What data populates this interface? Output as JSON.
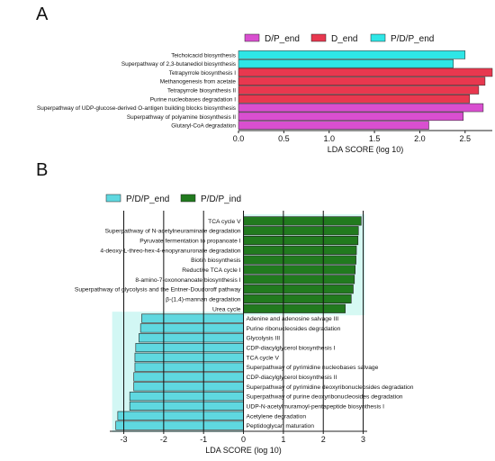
{
  "chart_data": [
    {
      "panel": "A",
      "type": "bar",
      "orientation": "horizontal",
      "xlabel": "LDA SCORE (log 10)",
      "xlim": [
        0,
        2.8
      ],
      "xticks": [
        0.0,
        0.5,
        1.0,
        1.5,
        2.0,
        2.5
      ],
      "xtick_labels": [
        "0.0",
        "0.5",
        "1.0",
        "1.5",
        "2.0",
        "2.5"
      ],
      "grid": false,
      "legend_position": "top",
      "legend": [
        {
          "name": "D/P_end",
          "color": "#d94fd0"
        },
        {
          "name": "D_end",
          "color": "#e8384f"
        },
        {
          "name": "P/D/P_end",
          "color": "#2ee6e6"
        }
      ],
      "bars": [
        {
          "label": "Teichoicacid biosynthesis",
          "value": 2.5,
          "group": "P/D/P_end"
        },
        {
          "label": "Superpathway of 2,3-butanediol biosynthesis",
          "value": 2.37,
          "group": "P/D/P_end"
        },
        {
          "label": "Tetrapyrrole biosynthesis I",
          "value": 2.8,
          "group": "D_end"
        },
        {
          "label": "Methanogenesis from acetate",
          "value": 2.72,
          "group": "D_end"
        },
        {
          "label": "Tetrapyrrole biosynthesis II",
          "value": 2.65,
          "group": "D_end"
        },
        {
          "label": "Purine nucleobases degradation I",
          "value": 2.55,
          "group": "D_end"
        },
        {
          "label": "Superpathway of UDP-glucose-derived O-antigen building blocks biosynthesis",
          "value": 2.7,
          "group": "D/P_end"
        },
        {
          "label": "Superpathway of polyamine biosynthesis II",
          "value": 2.48,
          "group": "D/P_end"
        },
        {
          "label": "Glutaryl-CoA degradation",
          "value": 2.1,
          "group": "D/P_end"
        }
      ]
    },
    {
      "panel": "B",
      "type": "bar",
      "orientation": "horizontal",
      "xlabel": "LDA SCORE (log 10)",
      "xlim": [
        -3.35,
        3.1
      ],
      "xticks": [
        -3,
        -2,
        -1,
        0,
        1,
        2,
        3
      ],
      "xtick_labels": [
        "-3",
        "-2",
        "-1",
        "0",
        "1",
        "2",
        "3"
      ],
      "grid": true,
      "legend_position": "top-left",
      "legend": [
        {
          "name": "P/D/P_end",
          "color": "#5fd8e0"
        },
        {
          "name": "P/D/P_ind",
          "color": "#217a1e"
        }
      ],
      "bars": [
        {
          "label": "TCA cycle V",
          "value": 2.95,
          "group": "P/D/P_ind"
        },
        {
          "label": "Superpathway of N-acetylneuraminate degradation",
          "value": 2.88,
          "group": "P/D/P_ind"
        },
        {
          "label": "Pyruvate fermentation to propanoate I",
          "value": 2.87,
          "group": "P/D/P_ind"
        },
        {
          "label": "4-deoxy-L-threo-hex-4-enopyranuronate degradation",
          "value": 2.83,
          "group": "P/D/P_ind"
        },
        {
          "label": "Biotin biosynthesis",
          "value": 2.82,
          "group": "P/D/P_ind"
        },
        {
          "label": "Reductive TCA cycle I",
          "value": 2.8,
          "group": "P/D/P_ind"
        },
        {
          "label": "8-amino-7-oxononanoate biosynthesis I",
          "value": 2.78,
          "group": "P/D/P_ind"
        },
        {
          "label": "Superpathway of glycolysis and the Entner-Doudoroff pathway",
          "value": 2.75,
          "group": "P/D/P_ind"
        },
        {
          "label": "β-(1,4)-mannan degradation",
          "value": 2.7,
          "group": "P/D/P_ind"
        },
        {
          "label": "Urea cycle",
          "value": 2.55,
          "group": "P/D/P_ind"
        },
        {
          "label": "Adenine and adenosine salvage III",
          "value": -2.55,
          "group": "P/D/P_end"
        },
        {
          "label": "Purine ribonucleosides degradation",
          "value": -2.58,
          "group": "P/D/P_end"
        },
        {
          "label": "Glycolysis III",
          "value": -2.62,
          "group": "P/D/P_end"
        },
        {
          "label": "CDP-diacylglycerol biosynthesis I",
          "value": -2.7,
          "group": "P/D/P_end"
        },
        {
          "label": "TCA cycle V",
          "value": -2.72,
          "group": "P/D/P_end"
        },
        {
          "label": "Superpathway of pyrimidine nucleobases salvage",
          "value": -2.72,
          "group": "P/D/P_end"
        },
        {
          "label": "CDP-diacylglycerol biosynthesis II",
          "value": -2.75,
          "group": "P/D/P_end"
        },
        {
          "label": "Superpathway of pyrimidine deoxyribonucleosides degradation",
          "value": -2.75,
          "group": "P/D/P_end"
        },
        {
          "label": "Superpathway of purine deoxyribonucleosides degradation",
          "value": -2.85,
          "group": "P/D/P_end"
        },
        {
          "label": "UDP-N-acetylmuramoyl-pentapeptide biosynthesis I",
          "value": -2.85,
          "group": "P/D/P_end"
        },
        {
          "label": "Acetylene degradation",
          "value": -3.15,
          "group": "P/D/P_end"
        },
        {
          "label": "Peptidoglycan maturation",
          "value": -3.2,
          "group": "P/D/P_end"
        }
      ]
    }
  ]
}
